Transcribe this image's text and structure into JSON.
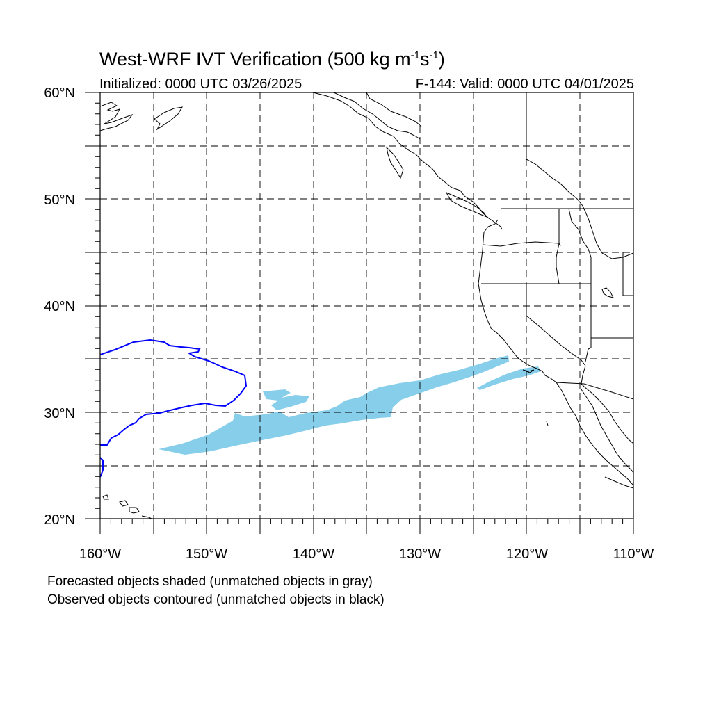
{
  "title": {
    "main": "West-WRF IVT Verification (500 kg m",
    "exp1": "-1",
    "mid": "s",
    "exp2": "-1",
    "close": ")"
  },
  "subtitle_left": "Initialized: 0000 UTC 03/26/2025",
  "subtitle_right": "F-144: Valid: 0000 UTC 04/01/2025",
  "lat_labels": [
    "60°N",
    "50°N",
    "40°N",
    "30°N",
    "20°N"
  ],
  "lon_labels": [
    "160°W",
    "150°W",
    "140°W",
    "130°W",
    "120°W",
    "110°W"
  ],
  "notes": [
    "Forecasted objects shaded (unmatched objects in gray)",
    "Observed objects contoured (unmatched objects in black)"
  ],
  "map": {
    "lon_range": [
      -160,
      -110
    ],
    "lat_range": [
      20,
      60
    ],
    "grid_spacing_deg": 5,
    "forecast_fill_color": "#87ceeb",
    "observed_contour_color": "#0000ff",
    "coastline_color": "#000000"
  }
}
